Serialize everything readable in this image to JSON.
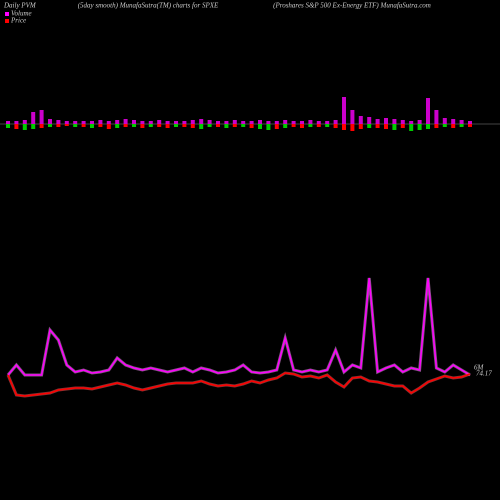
{
  "chart_data": {
    "type": "pvm",
    "title_left": "Daily PVM",
    "title_center": "(5day smooth) MunafaSutra(TM) charts for SPXE",
    "title_right": "(Proshares S&P 500  Ex-Energy ETF) MunafaSutra.com",
    "series": [
      {
        "name": "Volume",
        "color": "#ff00ff",
        "values": [
          25000,
          35000,
          25000,
          25000,
          25000,
          70000,
          60000,
          35000,
          28000,
          30000,
          27000,
          28000,
          30000,
          42000,
          35000,
          32000,
          30000,
          32000,
          30000,
          28000,
          30000,
          32000,
          28000,
          32000,
          30000,
          27000,
          28000,
          30000,
          35000,
          28000,
          27000,
          28000,
          30000,
          62000,
          30000,
          28000,
          30000,
          28000,
          30000,
          50000,
          28000,
          35000,
          32000,
          122000,
          28000,
          32000,
          35000,
          28000,
          32000,
          30000,
          122000,
          32000,
          28000,
          35000,
          30000,
          25000
        ]
      },
      {
        "name": "Price",
        "color": "#ff0000",
        "values": [
          74.12,
          73.12,
          73.07,
          73.12,
          73.17,
          73.22,
          73.37,
          73.42,
          73.47,
          73.47,
          73.42,
          73.52,
          73.62,
          73.72,
          73.62,
          73.47,
          73.37,
          73.47,
          73.57,
          73.67,
          73.72,
          73.72,
          73.72,
          73.82,
          73.67,
          73.57,
          73.62,
          73.57,
          73.67,
          73.82,
          73.72,
          73.87,
          73.97,
          74.22,
          74.17,
          74.02,
          74.07,
          73.97,
          74.12,
          73.77,
          73.52,
          73.97,
          74.02,
          73.82,
          73.77,
          73.67,
          73.57,
          73.57,
          73.22,
          73.47,
          73.77,
          73.92,
          74.07,
          73.97,
          74.02,
          74.17
        ]
      }
    ],
    "volume_lim": [
      0,
      130000
    ],
    "price_lim": [
      72.87,
      79.37
    ],
    "bar_above": [
      3,
      3,
      4,
      12,
      14,
      5,
      4,
      3,
      3,
      3,
      3,
      4,
      3,
      4,
      5,
      4,
      3,
      3,
      4,
      3,
      3,
      3,
      4,
      5,
      4,
      3,
      3,
      4,
      3,
      3,
      4,
      3,
      3,
      4,
      3,
      3,
      4,
      3,
      3,
      4,
      27,
      14,
      8,
      7,
      5,
      6,
      5,
      4,
      3,
      4,
      26,
      14,
      6,
      5,
      4,
      3
    ],
    "bar_above_color": "#cc00cc",
    "bar_below": [
      4,
      5,
      6,
      5,
      4,
      3,
      3,
      2,
      3,
      3,
      4,
      3,
      5,
      4,
      3,
      3,
      4,
      3,
      3,
      4,
      3,
      3,
      4,
      5,
      3,
      3,
      4,
      3,
      3,
      4,
      5,
      6,
      5,
      4,
      3,
      4,
      3,
      3,
      3,
      4,
      6,
      7,
      5,
      4,
      4,
      5,
      6,
      4,
      7,
      6,
      5,
      4,
      3,
      4,
      3,
      3
    ],
    "bar_below_colors": [
      "#00cc00",
      "#ff0000",
      "#00cc00",
      "#00cc00",
      "#ff0000",
      "#00cc00",
      "#ff0000",
      "#ff0000",
      "#00cc00",
      "#ff0000",
      "#00cc00",
      "#ff0000",
      "#ff0000",
      "#00cc00",
      "#ff0000",
      "#00cc00",
      "#ff0000",
      "#00cc00",
      "#ff0000",
      "#ff0000",
      "#00cc00",
      "#ff0000",
      "#ff0000",
      "#00cc00",
      "#00cc00",
      "#ff0000",
      "#00cc00",
      "#ff0000",
      "#00cc00",
      "#ff0000",
      "#00cc00",
      "#00cc00",
      "#ff0000",
      "#00cc00",
      "#ff0000",
      "#ff0000",
      "#00cc00",
      "#ff0000",
      "#00cc00",
      "#ff0000",
      "#ff0000",
      "#ff0000",
      "#ff0000",
      "#00cc00",
      "#ff0000",
      "#ff0000",
      "#00cc00",
      "#ff0000",
      "#00cc00",
      "#00cc00",
      "#00cc00",
      "#ff0000",
      "#00cc00",
      "#ff0000",
      "#00cc00",
      "#ff0000"
    ],
    "bar_lim": [
      0,
      30
    ],
    "annotations": [
      "6M",
      "74.17"
    ]
  }
}
